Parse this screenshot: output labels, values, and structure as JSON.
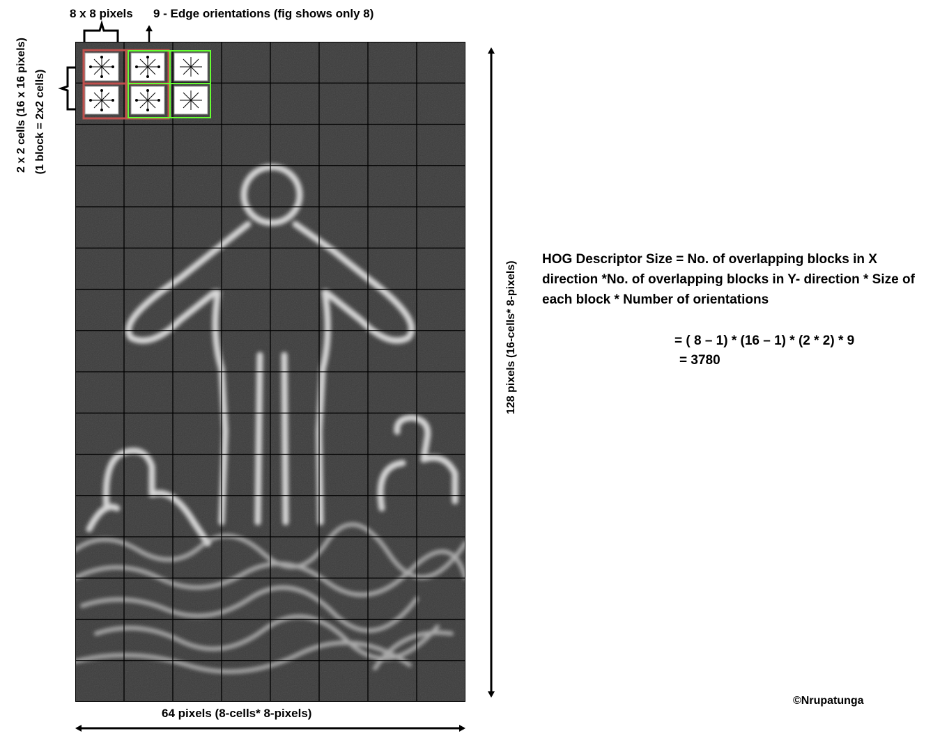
{
  "labels": {
    "cell_size": "8 x 8 pixels",
    "orientations": "9 - Edge orientations (fig shows only 8)",
    "block_line1": "2 x 2 cells (16 x 16 pixels)",
    "block_line2": "(1 block = 2x2 cells)",
    "height": "128 pixels (16-cells* 8-pixels)",
    "width": "64 pixels (8-cells* 8-pixels)"
  },
  "formula": {
    "text": "HOG Descriptor Size  =  No. of  overlapping blocks in X direction *No. of overlapping blocks in Y- direction * Size of each block * Number of orientations",
    "expression": "= ( 8 – 1) * (16 – 1) * (2 * 2) * 9",
    "result": "=  3780"
  },
  "grid": {
    "columns": 8,
    "rows": 16
  },
  "colors": {
    "block1": "#c0504d",
    "block2": "#66ff33",
    "grid_bg": "#3a3a3a",
    "edges": "#e6e6e6"
  },
  "credit": "©Nrupatunga"
}
